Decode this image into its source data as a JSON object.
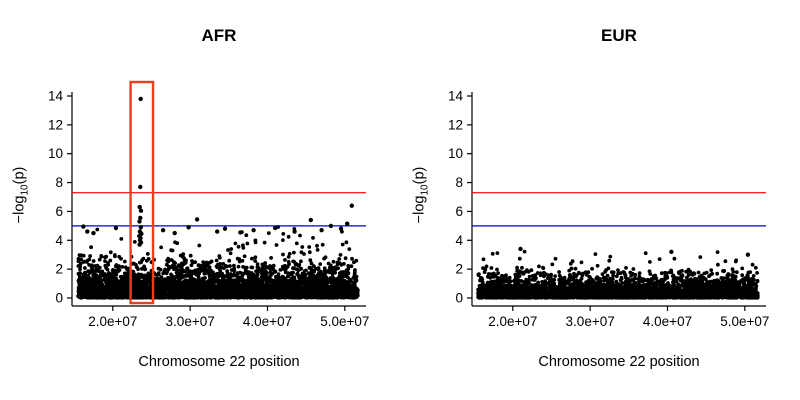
{
  "figure": {
    "background": "#ffffff",
    "point_color": "#000000"
  },
  "chart_data": [
    {
      "type": "scatter",
      "variant": "manhattan",
      "title": "AFR",
      "xlabel": "Chromosome 22 position",
      "ylabel": {
        "prefix": "−log",
        "sub": "10",
        "suffix": "(p)"
      },
      "xlim": [
        15500000,
        51700000
      ],
      "ylim": [
        0,
        14
      ],
      "x_ticks": [
        {
          "value": 20000000,
          "label": "2.0e+07"
        },
        {
          "value": 30000000,
          "label": "3.0e+07"
        },
        {
          "value": 40000000,
          "label": "4.0e+07"
        },
        {
          "value": 50000000,
          "label": "5.0e+07"
        }
      ],
      "y_ticks": [
        {
          "value": 0,
          "label": "0"
        },
        {
          "value": 2,
          "label": "2"
        },
        {
          "value": 4,
          "label": "4"
        },
        {
          "value": 6,
          "label": "6"
        },
        {
          "value": 8,
          "label": "8"
        },
        {
          "value": 10,
          "label": "10"
        },
        {
          "value": 12,
          "label": "12"
        },
        {
          "value": 14,
          "label": "14"
        }
      ],
      "threshold_lines": [
        {
          "name": "genome-wide-significance",
          "y": 7.3,
          "color": "#FF0000"
        },
        {
          "name": "suggestive-significance",
          "y": 5.0,
          "color": "#0000CC"
        }
      ],
      "highlight_box": {
        "x": [
          22300000,
          25200000
        ],
        "y": [
          -0.35,
          14.97
        ],
        "color": "#E8401F"
      },
      "peak_points": [
        [
          23600000,
          13.8
        ],
        [
          23550000,
          7.7
        ],
        [
          23480000,
          6.3
        ],
        [
          23650000,
          6.05
        ],
        [
          23560000,
          5.55
        ],
        [
          23450000,
          5.3
        ],
        [
          23620000,
          4.9
        ],
        [
          23500000,
          4.6
        ],
        [
          23700000,
          4.45
        ],
        [
          23420000,
          4.3
        ],
        [
          23580000,
          4.15
        ],
        [
          23520000,
          4.0
        ],
        [
          23660000,
          3.85
        ],
        [
          23470000,
          3.7
        ],
        [
          16200000,
          4.95
        ],
        [
          16700000,
          4.6
        ],
        [
          17500000,
          4.5
        ],
        [
          20400000,
          4.85
        ],
        [
          26500000,
          4.7
        ],
        [
          28000000,
          4.5
        ],
        [
          29800000,
          4.9
        ],
        [
          30900000,
          5.45
        ],
        [
          33500000,
          4.6
        ],
        [
          34500000,
          4.8
        ],
        [
          36500000,
          4.55
        ],
        [
          38200000,
          4.7
        ],
        [
          41000000,
          4.85
        ],
        [
          43500000,
          4.6
        ],
        [
          45600000,
          5.4
        ],
        [
          47000000,
          4.7
        ],
        [
          48200000,
          5.0
        ],
        [
          49500000,
          4.8
        ],
        [
          50300000,
          5.15
        ],
        [
          50900000,
          6.4
        ]
      ],
      "background_points": {
        "count": 4500,
        "y_scale": 1.65,
        "y_max": 5.1,
        "seed": 20,
        "radius": 1.9
      }
    },
    {
      "type": "scatter",
      "variant": "manhattan",
      "title": "EUR",
      "xlabel": "Chromosome 22 position",
      "ylabel": {
        "prefix": "−log",
        "sub": "10",
        "suffix": "(p)"
      },
      "xlim": [
        15500000,
        51700000
      ],
      "ylim": [
        0,
        14
      ],
      "x_ticks": [
        {
          "value": 20000000,
          "label": "2.0e+07"
        },
        {
          "value": 30000000,
          "label": "3.0e+07"
        },
        {
          "value": 40000000,
          "label": "4.0e+07"
        },
        {
          "value": 50000000,
          "label": "5.0e+07"
        }
      ],
      "y_ticks": [
        {
          "value": 0,
          "label": "0"
        },
        {
          "value": 2,
          "label": "2"
        },
        {
          "value": 4,
          "label": "4"
        },
        {
          "value": 6,
          "label": "6"
        },
        {
          "value": 8,
          "label": "8"
        },
        {
          "value": 10,
          "label": "10"
        },
        {
          "value": 12,
          "label": "12"
        },
        {
          "value": 14,
          "label": "14"
        }
      ],
      "threshold_lines": [
        {
          "name": "genome-wide-significance",
          "y": 7.3,
          "color": "#FF0000"
        },
        {
          "name": "suggestive-significance",
          "y": 5.0,
          "color": "#0000CC"
        }
      ],
      "highlight_box": null,
      "peak_points": [
        [
          21000000,
          3.4
        ],
        [
          40500000,
          3.2
        ],
        [
          50400000,
          3.0
        ]
      ],
      "background_points": {
        "count": 4200,
        "y_scale": 1.05,
        "y_max": 3.55,
        "seed": 77,
        "radius": 1.9
      }
    }
  ]
}
